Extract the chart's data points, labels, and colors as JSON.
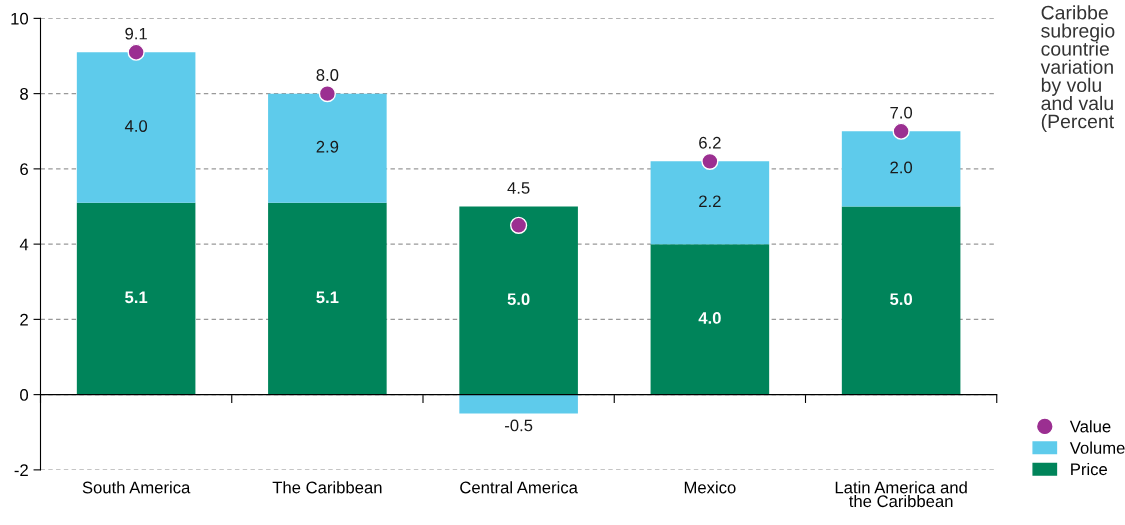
{
  "chart_data": {
    "type": "bar",
    "stacked": true,
    "categories": [
      "South America",
      "The Caribbean",
      "Central America",
      "Mexico",
      "Latin America and\nthe Caribbean"
    ],
    "series": [
      {
        "name": "Price",
        "color": "#00845a",
        "values": [
          5.1,
          5.1,
          5.0,
          4.0,
          5.0
        ],
        "value_labels": [
          "5.1",
          "5.1",
          "5.0",
          "4.0",
          "5.0"
        ]
      },
      {
        "name": "Volume",
        "color": "#5ecbeb",
        "values": [
          4.0,
          2.9,
          -0.5,
          2.2,
          2.0
        ],
        "value_labels": [
          "4.0",
          "2.9",
          "-0.5",
          "2.2",
          "2.0"
        ]
      },
      {
        "name": "Value",
        "type": "scatter",
        "color": "#9b2f91",
        "values": [
          9.1,
          8.0,
          4.5,
          6.2,
          7.0
        ],
        "value_labels": [
          "9.1",
          "8.0",
          "4.5",
          "6.2",
          "7.0"
        ]
      }
    ],
    "ylim": [
      -2,
      10
    ],
    "yticks": [
      -2,
      0,
      2,
      4,
      6,
      8,
      10
    ],
    "grid": "y",
    "legend": "bottom right",
    "marker": "circle",
    "annotations": [
      "Caribbe\nsubregio\ncountrie\nvariation\nby volu\nand valu\n(Percent"
    ]
  }
}
